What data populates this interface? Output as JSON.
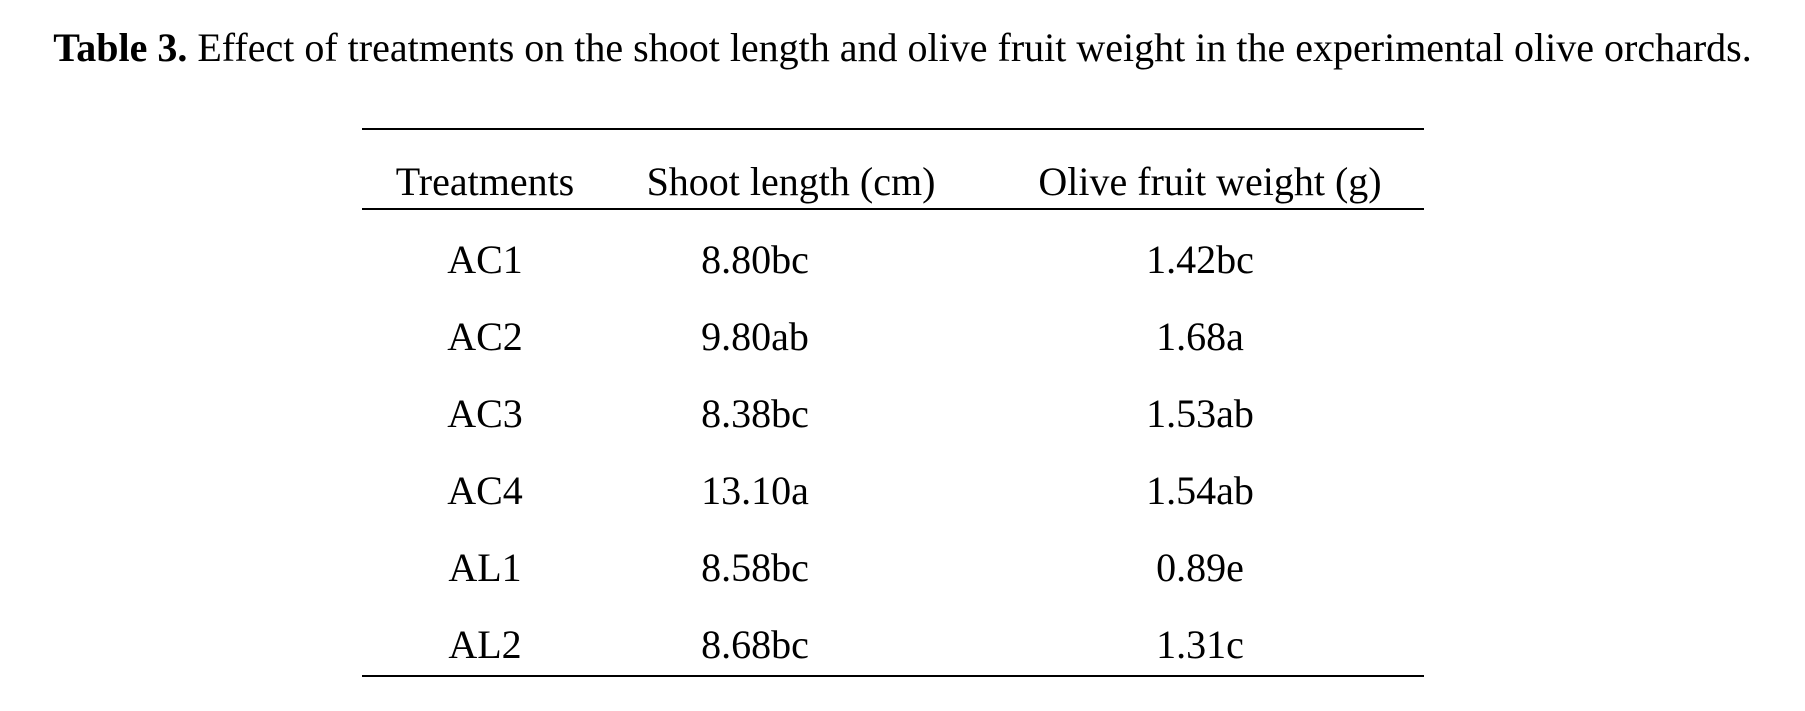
{
  "caption": {
    "label": "Table 3.",
    "text": " Effect of treatments on the shoot length and olive fruit weight in the experimental olive orchards."
  },
  "table": {
    "headers": [
      "Treatments",
      "Shoot length (cm)",
      "Olive fruit weight (g)"
    ],
    "rows": [
      [
        "AC1",
        "8.80bc",
        "1.42bc"
      ],
      [
        "AC2",
        "9.80ab",
        "1.68a"
      ],
      [
        "AC3",
        "8.38bc",
        "1.53ab"
      ],
      [
        "AC4",
        "13.10a",
        "1.54ab"
      ],
      [
        "AL1",
        "8.58bc",
        "0.89e"
      ],
      [
        "AL2",
        "8.68bc",
        "1.31c"
      ]
    ]
  }
}
